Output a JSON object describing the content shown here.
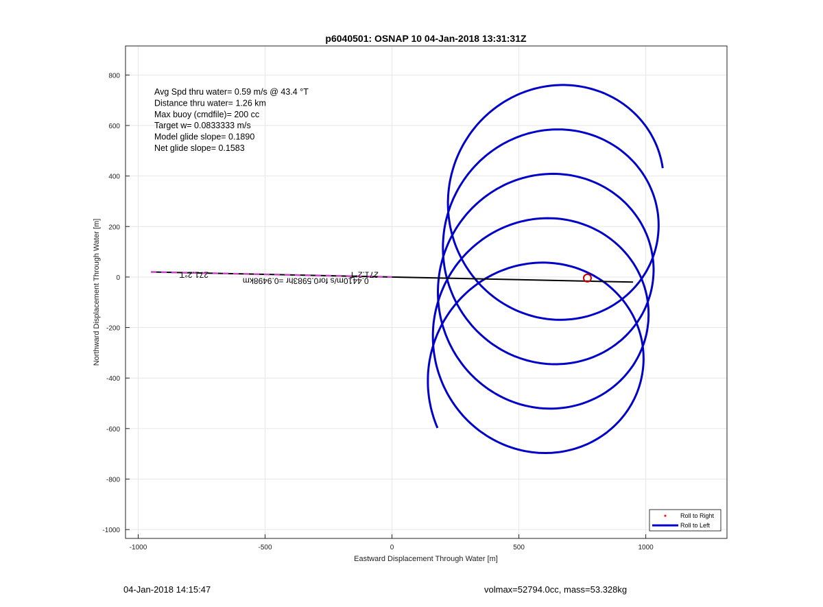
{
  "chart_data": {
    "type": "line",
    "title": "p6040501: OSNAP 10 04-Jan-2018 13:31:31Z",
    "xlabel": "Eastward Displacement Through Water [m]",
    "ylabel": "Northward Displacement Through Water [m]",
    "xlim": [
      -1050,
      1320
    ],
    "ylim": [
      -1035,
      915
    ],
    "xticks": [
      -1000,
      -500,
      0,
      500,
      1000
    ],
    "yticks": [
      -1000,
      -800,
      -600,
      -400,
      -200,
      0,
      200,
      400,
      600,
      800
    ],
    "grid": true,
    "legend_placement": "bottom-right",
    "legend": [
      {
        "label": "Roll to Right",
        "style": "marker",
        "color": "#ff0000"
      },
      {
        "label": "Roll to Left",
        "style": "line",
        "color": "#0000c8"
      }
    ],
    "info_lines": [
      "Avg Spd thru water=  0.59 m/s @  43.4 °T",
      "Distance thru water=  1.26 km",
      "Max buoy (cmdfile)= 200 cc",
      "Target w= 0.0833333 m/s",
      "Model glide slope= 0.1890",
      "Net glide slope= 0.1583"
    ],
    "annotations": [
      {
        "text": "271.2°T",
        "x": -780,
        "y": 20,
        "rotation": 180
      },
      {
        "text": "271.2°T",
        "x": -110,
        "y": 20,
        "rotation": 180
      },
      {
        "text": "0.4410m/s for0.5983hr =0.9498km",
        "x": -340,
        "y": -4,
        "rotation": 180
      }
    ],
    "series": [
      {
        "name": "Roll to Left",
        "color": "#0000c8",
        "spiral": {
          "x0": 560,
          "y0": -420,
          "x1": 650,
          "y1": 380,
          "radius": 420,
          "turns": 4.55,
          "start_angle_deg": 205
        }
      },
      {
        "name": "",
        "color": "#000000",
        "x": [
          -950,
          950
        ],
        "y": [
          20,
          -20
        ]
      },
      {
        "name": "",
        "color": "#cc44cc",
        "style": "dashed",
        "x": [
          -950,
          0
        ],
        "y": [
          20,
          0
        ]
      }
    ],
    "marker": {
      "x": 770,
      "y": -4,
      "color": "#cc0000"
    }
  },
  "footer": {
    "timestamp": "04-Jan-2018 14:15:47",
    "summary": "volmax=52794.0cc, mass=53.328kg"
  }
}
